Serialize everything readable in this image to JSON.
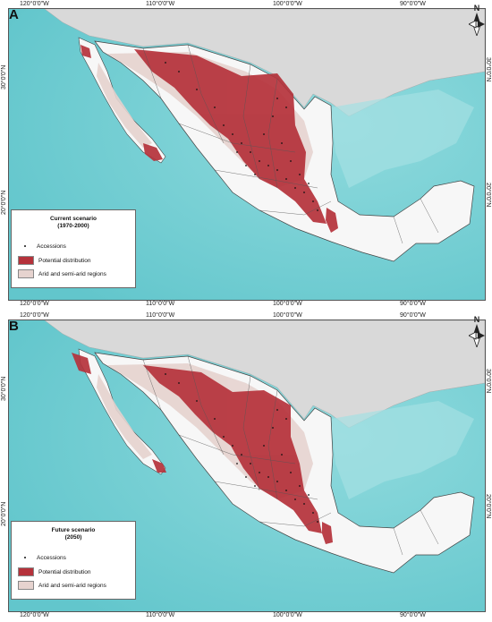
{
  "ticks": {
    "longitude": [
      "120°0'0\"W",
      "110°0'0\"W",
      "100°0'0\"W",
      "90°0'0\"W"
    ],
    "latitude": [
      "30°0'0\"N",
      "20°0'0\"N"
    ]
  },
  "north_arrow": {
    "label": "N",
    "icon": "north-arrow-icon"
  },
  "panels": [
    {
      "letter": "A",
      "legend": {
        "title_line1": "Current scenario",
        "title_line2": "(1970-2000)",
        "accessions": "Accessions",
        "potential": "Potential distribution",
        "arid": "Arid and semi-arid regions"
      }
    },
    {
      "letter": "B",
      "legend": {
        "title_line1": "Future scenario",
        "title_line2": "(2050)",
        "accessions": "Accessions",
        "potential": "Potential distribution",
        "arid": "Arid and semi-arid regions"
      }
    }
  ],
  "colors": {
    "ocean": "#7fd3d7",
    "ocean_deep": "#5cc3c9",
    "land_other": "#d9d9d9",
    "mexico": "#f7f7f7",
    "arid": "#e6d3cf",
    "potential": "#b5323b",
    "accessions": "#111111"
  }
}
